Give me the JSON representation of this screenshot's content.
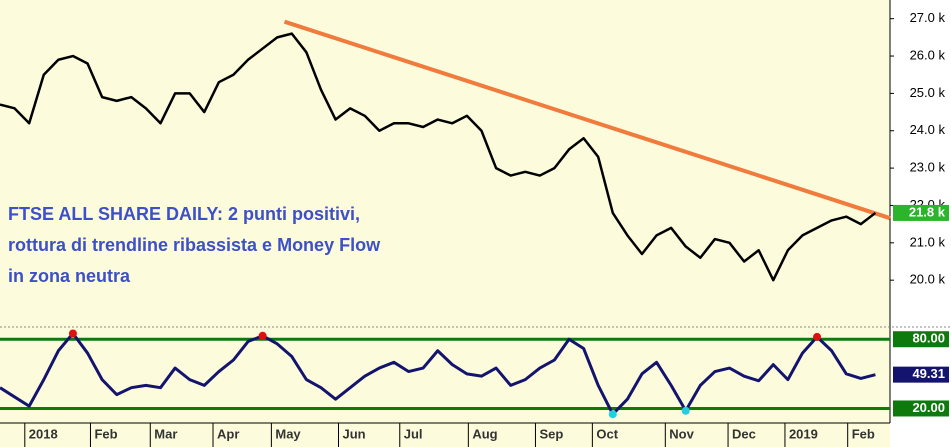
{
  "chart_data": [
    {
      "type": "line",
      "color": "#000000",
      "annotation": [
        "FTSE ALL SHARE DAILY: 2 punti positivi,",
        "rottura di trendline ribassista e Money Flow",
        "in zona neutra"
      ],
      "x": [
        0,
        1,
        2,
        3,
        4,
        5,
        6,
        7,
        8,
        9,
        10,
        11,
        12,
        13,
        14,
        15,
        16,
        17,
        18,
        19,
        20,
        21,
        22,
        23,
        24,
        25,
        26,
        27,
        28,
        29,
        30,
        31,
        32,
        33,
        34,
        35,
        36,
        37,
        38,
        39,
        40,
        41,
        42,
        43,
        44,
        45,
        46,
        47,
        48,
        49,
        50,
        51,
        52,
        53,
        54,
        55,
        56,
        57,
        58,
        59,
        60
      ],
      "values": [
        24.7,
        24.6,
        24.2,
        25.5,
        25.9,
        26.0,
        25.8,
        24.9,
        24.8,
        24.9,
        24.6,
        24.2,
        25.0,
        25.0,
        24.5,
        25.3,
        25.5,
        25.9,
        26.2,
        26.5,
        26.6,
        26.1,
        25.1,
        24.3,
        24.6,
        24.4,
        24.0,
        24.2,
        24.2,
        24.1,
        24.3,
        24.2,
        24.4,
        24.0,
        23.0,
        22.8,
        22.9,
        22.8,
        23.0,
        23.5,
        23.8,
        23.3,
        21.8,
        21.2,
        20.7,
        21.2,
        21.4,
        20.9,
        20.6,
        21.1,
        21.0,
        20.5,
        20.8,
        20.0,
        20.8,
        21.2,
        21.4,
        21.6,
        21.7,
        21.5,
        21.8
      ],
      "trendline": {
        "x": [
          19.5,
          61
        ],
        "values": [
          26.92,
          21.66
        ],
        "color": "#f07b3c"
      },
      "last_value": {
        "value": 21.8,
        "label": "21.8 k",
        "color": "#2bb52b"
      },
      "xlim": [
        0,
        61
      ],
      "ylim": [
        18.8,
        27.5
      ],
      "xticks": [
        {
          "value": 1.7,
          "label": "2018"
        },
        {
          "value": 6.2,
          "label": "Feb"
        },
        {
          "value": 10.3,
          "label": "Mar"
        },
        {
          "value": 14.6,
          "label": "Apr"
        },
        {
          "value": 18.6,
          "label": "May"
        },
        {
          "value": 23.2,
          "label": "Jun"
        },
        {
          "value": 27.4,
          "label": "Jul"
        },
        {
          "value": 32.1,
          "label": "Aug"
        },
        {
          "value": 36.7,
          "label": "Sep"
        },
        {
          "value": 40.6,
          "label": "Oct"
        },
        {
          "value": 45.6,
          "label": "Nov"
        },
        {
          "value": 49.9,
          "label": "Dec"
        },
        {
          "value": 53.8,
          "label": "2019"
        },
        {
          "value": 58.1,
          "label": "Feb"
        }
      ],
      "yticks": [
        {
          "value": 27,
          "label": "27.0 k"
        },
        {
          "value": 26,
          "label": "26.0 k"
        },
        {
          "value": 25,
          "label": "25.0 k"
        },
        {
          "value": 24,
          "label": "24.0 k"
        },
        {
          "value": 23,
          "label": "23.0 k"
        },
        {
          "value": 22,
          "label": "22.0 k"
        },
        {
          "value": 21,
          "label": "21.0 k"
        },
        {
          "value": 20,
          "label": "20.0 k"
        }
      ]
    },
    {
      "type": "line",
      "color": "#14146e",
      "overbought_color": "#e01010",
      "oversold_color": "#20d0e0",
      "x": [
        0,
        1,
        2,
        3,
        4,
        5,
        6,
        7,
        8,
        9,
        10,
        11,
        12,
        13,
        14,
        15,
        16,
        17,
        18,
        19,
        20,
        21,
        22,
        23,
        24,
        25,
        26,
        27,
        28,
        29,
        30,
        31,
        32,
        33,
        34,
        35,
        36,
        37,
        38,
        39,
        40,
        41,
        42,
        43,
        44,
        45,
        46,
        47,
        48,
        49,
        50,
        51,
        52,
        53,
        54,
        55,
        56,
        57,
        58,
        59,
        60
      ],
      "values": [
        38,
        30,
        22,
        45,
        70,
        85,
        68,
        45,
        32,
        38,
        40,
        38,
        55,
        45,
        40,
        52,
        62,
        78,
        83,
        76,
        65,
        45,
        38,
        28,
        38,
        48,
        55,
        60,
        52,
        55,
        70,
        58,
        50,
        48,
        55,
        40,
        45,
        55,
        62,
        80,
        72,
        40,
        15,
        28,
        50,
        60,
        40,
        18,
        40,
        52,
        55,
        48,
        44,
        58,
        45,
        68,
        82,
        70,
        50,
        46,
        49.31
      ],
      "last_value": {
        "value": 49.31,
        "label": "49.31",
        "color": "#14146e"
      },
      "xlim": [
        0,
        61
      ],
      "ylim": [
        10,
        88
      ],
      "levels": [
        {
          "value": 80,
          "label": "80.00"
        },
        {
          "value": 20,
          "label": "20.00"
        }
      ],
      "level_color": "#0e7a0e"
    }
  ]
}
